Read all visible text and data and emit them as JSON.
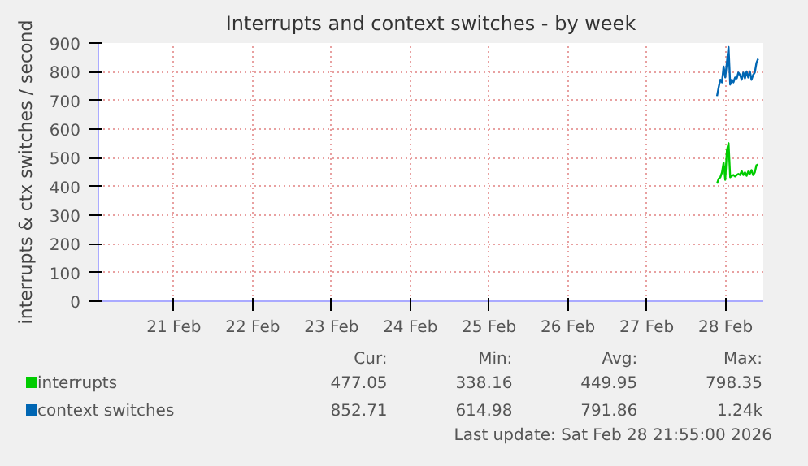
{
  "chart_data": {
    "type": "line",
    "title": "Interrupts and context switches - by week",
    "ylabel": "interrupts & ctx switches / second",
    "x": [
      "2026-02-28T09:25",
      "2026-02-28T09:55",
      "2026-02-28T10:25",
      "2026-02-28T10:55",
      "2026-02-28T11:25",
      "2026-02-28T11:55",
      "2026-02-28T12:25",
      "2026-02-28T12:55",
      "2026-02-28T13:25",
      "2026-02-28T13:55",
      "2026-02-28T14:25",
      "2026-02-28T14:55",
      "2026-02-28T15:25",
      "2026-02-28T15:55",
      "2026-02-28T16:25",
      "2026-02-28T16:55",
      "2026-02-28T17:25",
      "2026-02-28T17:55",
      "2026-02-28T18:25",
      "2026-02-28T18:55",
      "2026-02-28T19:25",
      "2026-02-28T19:55",
      "2026-02-28T20:25",
      "2026-02-28T20:55",
      "2026-02-28T21:25",
      "2026-02-28T21:55"
    ],
    "series": [
      {
        "name": "interrupts",
        "color": "#00cc00",
        "values": [
          410,
          427,
          432,
          449,
          483,
          423,
          525,
          551,
          432,
          437,
          440,
          435,
          440,
          444,
          440,
          454,
          440,
          449,
          437,
          452,
          444,
          457,
          440,
          449,
          474,
          477
        ]
      },
      {
        "name": "context switches",
        "color": "#0066b3",
        "values": [
          715,
          746,
          772,
          763,
          818,
          780,
          831,
          886,
          755,
          772,
          763,
          780,
          777,
          797,
          789,
          772,
          797,
          777,
          801,
          780,
          801,
          772,
          789,
          797,
          831,
          845
        ]
      }
    ],
    "xlim": [
      "2026-02-20T13:00",
      "2026-02-28T23:30"
    ],
    "xticks": [
      {
        "value": "2026-02-21T12:00",
        "label": "21 Feb"
      },
      {
        "value": "2026-02-22T12:00",
        "label": "22 Feb"
      },
      {
        "value": "2026-02-23T12:00",
        "label": "23 Feb"
      },
      {
        "value": "2026-02-24T12:00",
        "label": "24 Feb"
      },
      {
        "value": "2026-02-25T12:00",
        "label": "25 Feb"
      },
      {
        "value": "2026-02-26T12:00",
        "label": "26 Feb"
      },
      {
        "value": "2026-02-27T12:00",
        "label": "27 Feb"
      },
      {
        "value": "2026-02-28T12:00",
        "label": "28 Feb"
      }
    ],
    "ylim": [
      0,
      900
    ],
    "yticks": [
      0,
      100,
      200,
      300,
      400,
      500,
      600,
      700,
      800,
      900
    ],
    "grid": true,
    "legend": "bottom",
    "marker": "none",
    "line_style": "solid",
    "annotations": [
      "Cur:",
      "Min:",
      "Avg:",
      "Max:",
      "477.05",
      "338.16",
      "449.95",
      "798.35",
      "852.71",
      "614.98",
      "791.86",
      "1.24k",
      "Last update: Sat Feb 28 21:55:00 2026"
    ]
  }
}
